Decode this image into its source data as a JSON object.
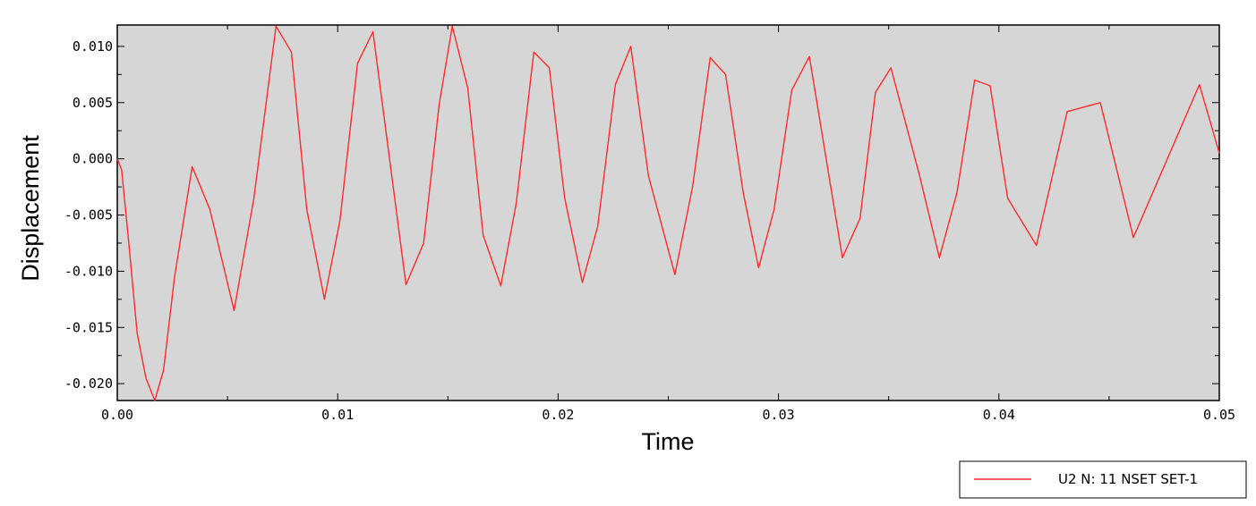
{
  "chart_data": {
    "type": "line",
    "xlabel": "Time",
    "ylabel": "Displacement",
    "xlim": [
      0.0,
      0.05
    ],
    "ylim": [
      -0.0215,
      0.0119
    ],
    "x_ticks": [
      0.0,
      0.01,
      0.02,
      0.03,
      0.04,
      0.05
    ],
    "x_tick_labels": [
      "0.00",
      "0.01",
      "0.02",
      "0.03",
      "0.04",
      "0.05"
    ],
    "y_ticks": [
      0.01,
      0.005,
      0.0,
      -0.005,
      -0.01,
      -0.015,
      -0.02
    ],
    "y_tick_labels": [
      "0.010",
      "0.005",
      "0.000",
      "-0.005",
      "-0.010",
      "-0.015",
      "-0.020"
    ],
    "grid": false,
    "legend_position": "bottom-right",
    "plot_background": "#d6d6d6",
    "series": [
      {
        "name": "U2 N: 11 NSET SET-1",
        "color": "#ff2a2a",
        "x": [
          0.0,
          0.0002,
          0.0005,
          0.0009,
          0.0013,
          0.0017,
          0.0021,
          0.0026,
          0.0034,
          0.0042,
          0.0053,
          0.0062,
          0.0072,
          0.0079,
          0.0086,
          0.0094,
          0.0101,
          0.0109,
          0.0116,
          0.0131,
          0.0139,
          0.0146,
          0.0152,
          0.0159,
          0.0166,
          0.0174,
          0.0181,
          0.0189,
          0.0196,
          0.0203,
          0.0211,
          0.0218,
          0.0226,
          0.0233,
          0.0241,
          0.0253,
          0.0261,
          0.0269,
          0.0276,
          0.0284,
          0.0291,
          0.0298,
          0.0306,
          0.0314,
          0.0329,
          0.0337,
          0.0344,
          0.0351,
          0.0364,
          0.0373,
          0.0381,
          0.0389,
          0.0396,
          0.0404,
          0.0417,
          0.0431,
          0.0446,
          0.0461,
          0.0491,
          0.05
        ],
        "y": [
          0.0,
          -0.001,
          -0.007,
          -0.0155,
          -0.0195,
          -0.0215,
          -0.0188,
          -0.0105,
          -0.0007,
          -0.0045,
          -0.0135,
          -0.0035,
          0.0118,
          0.0095,
          -0.0045,
          -0.0125,
          -0.0055,
          0.0085,
          0.0113,
          -0.0112,
          -0.0075,
          0.0048,
          0.0118,
          0.0063,
          -0.0068,
          -0.0113,
          -0.004,
          0.0095,
          0.0081,
          -0.0035,
          -0.011,
          -0.006,
          0.0066,
          0.01,
          -0.0015,
          -0.0103,
          -0.0025,
          0.009,
          0.0075,
          -0.003,
          -0.0097,
          -0.0045,
          0.0061,
          0.0091,
          -0.0088,
          -0.0053,
          0.0059,
          0.0081,
          -0.0015,
          -0.0088,
          -0.003,
          0.007,
          0.0065,
          -0.0035,
          -0.0077,
          0.0042,
          0.005,
          -0.007,
          0.0066,
          0.0005
        ]
      }
    ]
  }
}
